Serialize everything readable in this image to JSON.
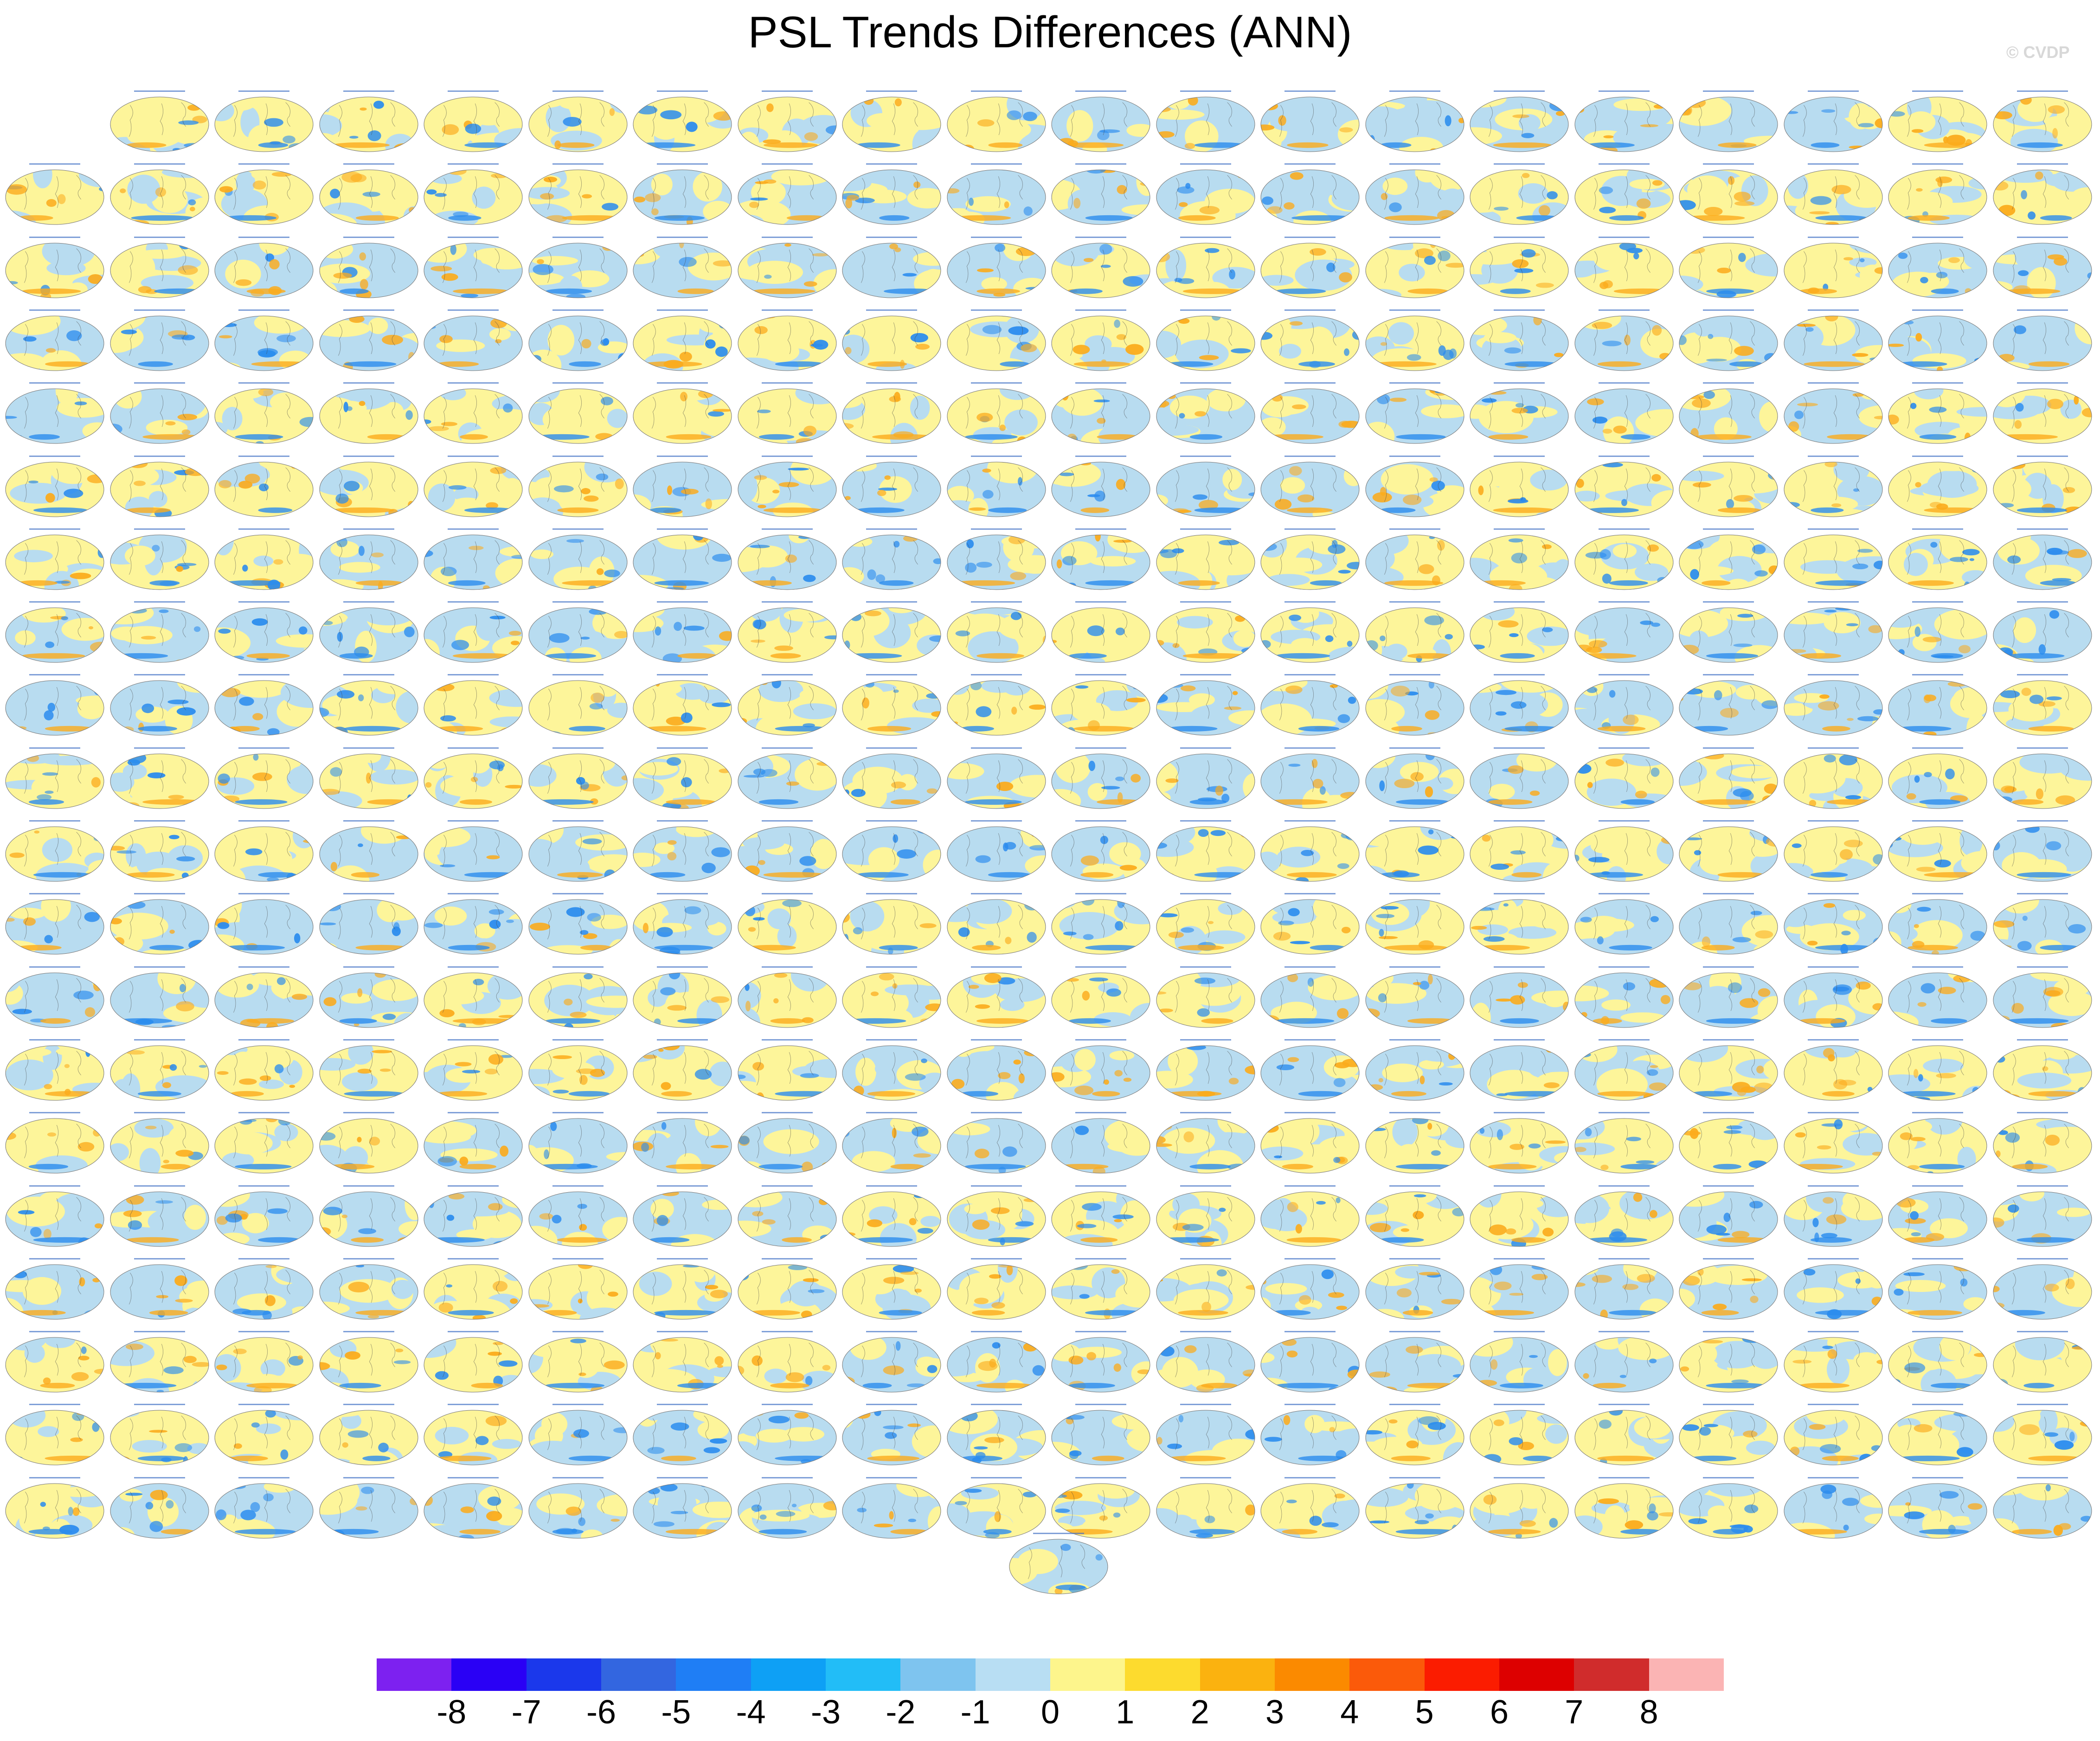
{
  "figure": {
    "title": "PSL Trends Differences (ANN)",
    "credit": "© CVDP"
  },
  "panel_grid": {
    "rows": 20,
    "columns": 20,
    "first_row_offset": 1,
    "final_single_panel": true,
    "total_panels": 400,
    "panel_title_color": "#4a78c8",
    "map_colors": {
      "ocean": "#b8dcf0",
      "land_yellow": "#fdf59a",
      "blue_anomaly": "#2b8cee",
      "orange_anomaly": "#fbab1c",
      "coastline": "#444444"
    }
  },
  "colorbar": {
    "colors": [
      "#7d21f0",
      "#2a00f5",
      "#1b38eb",
      "#3366e0",
      "#1f7ef5",
      "#0ea0f5",
      "#22bdf7",
      "#7ec4ef",
      "#b8def3",
      "#fdf58c",
      "#fddb2e",
      "#fbb20f",
      "#fb8a00",
      "#fb5a0a",
      "#fb1c00",
      "#dd0000",
      "#d02c2c",
      "#fbb4b4"
    ],
    "labels": [
      "-8",
      "-7",
      "-6",
      "-5",
      "-4",
      "-3",
      "-2",
      "-1",
      "0",
      "1",
      "2",
      "3",
      "4",
      "5",
      "6",
      "7",
      "8"
    ]
  }
}
